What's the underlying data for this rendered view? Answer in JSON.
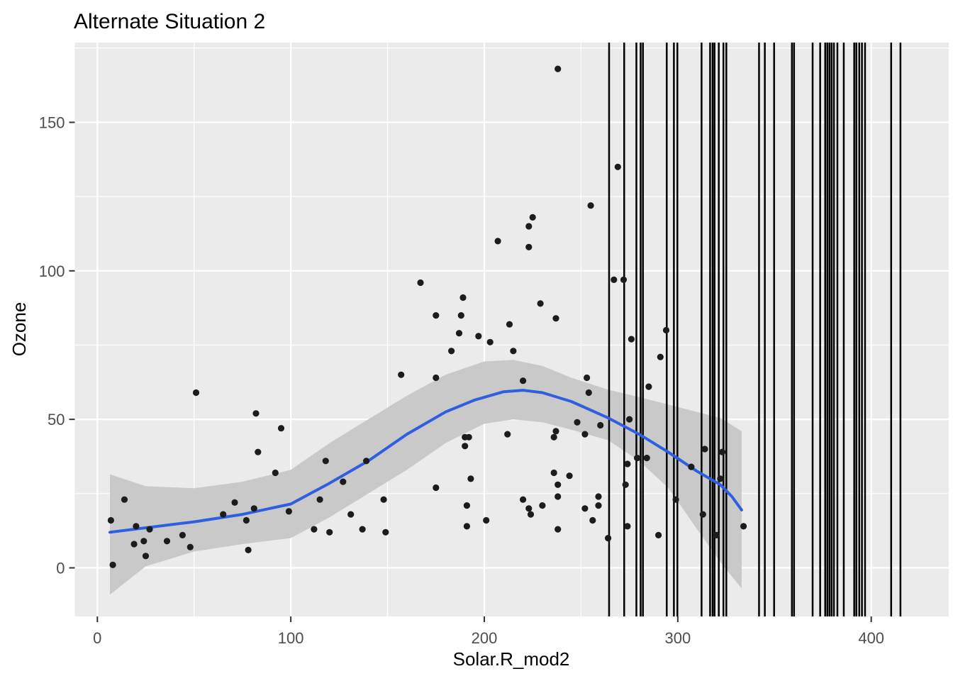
{
  "chart_data": {
    "type": "scatter",
    "title": "Alternate Situation 2",
    "xlabel": "Solar.R_mod2",
    "ylabel": "Ozone",
    "x_ticks": [
      0,
      100,
      200,
      300,
      400
    ],
    "x_tick_labels": [
      "0",
      "100",
      "200",
      "300",
      "400"
    ],
    "y_ticks": [
      0,
      50,
      100,
      150
    ],
    "y_tick_labels": [
      "0",
      "50",
      "100",
      "150"
    ],
    "x_minor_ticks": [
      50,
      150,
      250,
      350
    ],
    "y_minor_ticks": [
      25,
      75,
      125,
      175
    ],
    "xlim": [
      -12,
      430
    ],
    "ylim": [
      -17,
      177
    ],
    "grid": true,
    "legend": "none",
    "points": [
      [
        8,
        1
      ],
      [
        7,
        16
      ],
      [
        14,
        23
      ],
      [
        19,
        8
      ],
      [
        20,
        14
      ],
      [
        24,
        9
      ],
      [
        25,
        4
      ],
      [
        27,
        13
      ],
      [
        36,
        9
      ],
      [
        44,
        11
      ],
      [
        48,
        7
      ],
      [
        51,
        59
      ],
      [
        65,
        18
      ],
      [
        71,
        22
      ],
      [
        77,
        16
      ],
      [
        78,
        6
      ],
      [
        81,
        20
      ],
      [
        82,
        52
      ],
      [
        83,
        39
      ],
      [
        92,
        32
      ],
      [
        95,
        47
      ],
      [
        99,
        19
      ],
      [
        112,
        13
      ],
      [
        115,
        23
      ],
      [
        118,
        36
      ],
      [
        120,
        12
      ],
      [
        127,
        29
      ],
      [
        131,
        18
      ],
      [
        137,
        13
      ],
      [
        139,
        36
      ],
      [
        148,
        23
      ],
      [
        149,
        12
      ],
      [
        157,
        65
      ],
      [
        167,
        96
      ],
      [
        175,
        27
      ],
      [
        175,
        64
      ],
      [
        175,
        85
      ],
      [
        183,
        73
      ],
      [
        187,
        79
      ],
      [
        188,
        85
      ],
      [
        189,
        91
      ],
      [
        190,
        41
      ],
      [
        190,
        44
      ],
      [
        191,
        14
      ],
      [
        191,
        21
      ],
      [
        192,
        44
      ],
      [
        193,
        30
      ],
      [
        197,
        78
      ],
      [
        201,
        16
      ],
      [
        203,
        76
      ],
      [
        207,
        110
      ],
      [
        212,
        45
      ],
      [
        213,
        82
      ],
      [
        215,
        73
      ],
      [
        220,
        23
      ],
      [
        220,
        63
      ],
      [
        223,
        20
      ],
      [
        223,
        108
      ],
      [
        223,
        115
      ],
      [
        224,
        18
      ],
      [
        225,
        118
      ],
      [
        229,
        89
      ],
      [
        230,
        21
      ],
      [
        236,
        32
      ],
      [
        236,
        44
      ],
      [
        237,
        46
      ],
      [
        237,
        84
      ],
      [
        238,
        13
      ],
      [
        238,
        24
      ],
      [
        238,
        28
      ],
      [
        238,
        168
      ],
      [
        244,
        31
      ],
      [
        248,
        49
      ],
      [
        252,
        20
      ],
      [
        252,
        45
      ],
      [
        253,
        64
      ],
      [
        254,
        59
      ],
      [
        255,
        122
      ],
      [
        256,
        16
      ],
      [
        259,
        21
      ],
      [
        259,
        24
      ],
      [
        260,
        48
      ],
      [
        264,
        10
      ],
      [
        267,
        97
      ],
      [
        269,
        135
      ],
      [
        272,
        97
      ],
      [
        273,
        28
      ],
      [
        274,
        14
      ],
      [
        274,
        35
      ],
      [
        275,
        50
      ],
      [
        276,
        77
      ],
      [
        279,
        37
      ],
      [
        284,
        37
      ],
      [
        285,
        61
      ],
      [
        290,
        11
      ],
      [
        291,
        71
      ],
      [
        294,
        80
      ],
      [
        299,
        23
      ],
      [
        307,
        34
      ],
      [
        313,
        18
      ],
      [
        314,
        40
      ],
      [
        320,
        11
      ],
      [
        322,
        30
      ],
      [
        323,
        39
      ],
      [
        334,
        14
      ]
    ],
    "smooth_line": [
      [
        6.5,
        12
      ],
      [
        25,
        13.5
      ],
      [
        50,
        15.5
      ],
      [
        75,
        18
      ],
      [
        100,
        21.5
      ],
      [
        120,
        28.5
      ],
      [
        140,
        36
      ],
      [
        160,
        45
      ],
      [
        180,
        52.5
      ],
      [
        195,
        56.5
      ],
      [
        210,
        59.3
      ],
      [
        220,
        59.8
      ],
      [
        230,
        59
      ],
      [
        245,
        56
      ],
      [
        264,
        50.5
      ],
      [
        280,
        45
      ],
      [
        295,
        39
      ],
      [
        310,
        32.5
      ],
      [
        322,
        28
      ],
      [
        328,
        24
      ],
      [
        333,
        19.5
      ]
    ],
    "ribbon": {
      "x": [
        6.5,
        25,
        50,
        75,
        100,
        120,
        140,
        160,
        180,
        200,
        215,
        230,
        245,
        264,
        280,
        295,
        310,
        322,
        333
      ],
      "upper": [
        31.5,
        27.5,
        26.8,
        29,
        33,
        42,
        50,
        58,
        65,
        69.5,
        70,
        68,
        64,
        60,
        57.5,
        55,
        52.5,
        50.5,
        46
      ],
      "lower": [
        -9,
        0.5,
        5.5,
        8,
        10,
        17,
        25,
        33,
        42,
        48.5,
        50,
        49,
        46.5,
        43,
        36,
        27,
        13,
        2,
        -7
      ]
    },
    "vlines": [
      264.5,
      272.3,
      278.6,
      280.8,
      282.0,
      294.3,
      298.0,
      299.8,
      312.3,
      316.7,
      318.0,
      319.0,
      321.2,
      323.6,
      325.1,
      342.0,
      345.0,
      349.8,
      359.0,
      360.1,
      369.7,
      373.6,
      376.2,
      377.3,
      378.4,
      379.5,
      380.7,
      382.5,
      385.8,
      391.2,
      392.3,
      393.8,
      395.2,
      396.8,
      410.3,
      415.1
    ],
    "colors": {
      "background": "#FFFFFF",
      "panel": "#EBEBEB",
      "grid": "#FFFFFF",
      "point": "#1C1C1C",
      "smooth": "#2F5FE0",
      "ribbon": "#C9C9C9",
      "vline": "#000000",
      "tick_mark": "#333333",
      "tick_label": "#4D4D4D",
      "title": "#000000"
    }
  }
}
